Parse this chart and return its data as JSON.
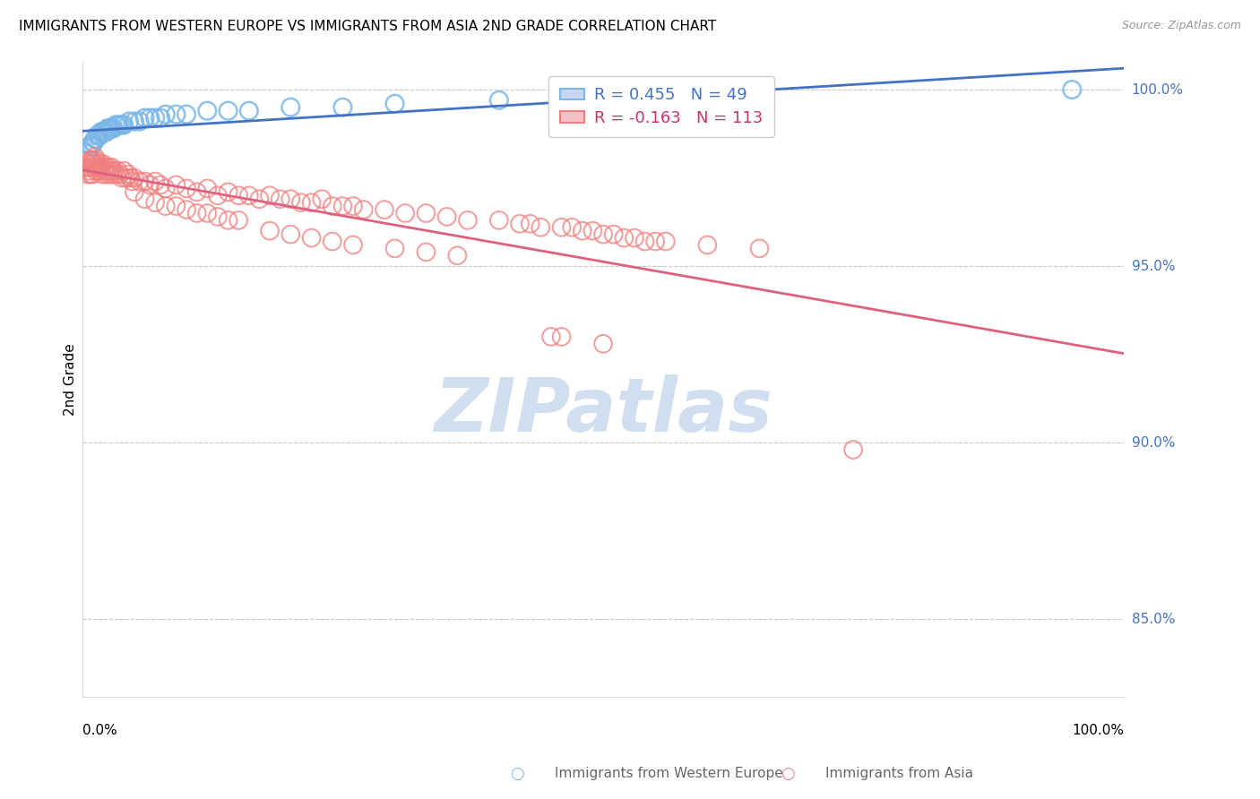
{
  "title": "IMMIGRANTS FROM WESTERN EUROPE VS IMMIGRANTS FROM ASIA 2ND GRADE CORRELATION CHART",
  "source": "Source: ZipAtlas.com",
  "ylabel": "2nd Grade",
  "blue_color": "#7BB8E8",
  "pink_color": "#F08080",
  "blue_line_color": "#4472C4",
  "pink_line_color": "#E06080",
  "watermark_color": "#D0DFF0",
  "legend_blue_r": "R = 0.455",
  "legend_blue_n": "N = 49",
  "legend_pink_r": "R = -0.163",
  "legend_pink_n": "N = 113",
  "xlim": [
    0.0,
    1.0
  ],
  "ylim": [
    0.828,
    1.008
  ],
  "ytick_values": [
    1.0,
    0.95,
    0.9,
    0.85
  ],
  "ytick_labels": [
    "100.0%",
    "95.0%",
    "90.0%",
    "85.0%"
  ],
  "blue_x": [
    0.003,
    0.005,
    0.007,
    0.009,
    0.01,
    0.011,
    0.012,
    0.013,
    0.014,
    0.015,
    0.016,
    0.017,
    0.018,
    0.019,
    0.02,
    0.021,
    0.022,
    0.023,
    0.024,
    0.025,
    0.026,
    0.027,
    0.028,
    0.03,
    0.032,
    0.034,
    0.036,
    0.038,
    0.04,
    0.045,
    0.05,
    0.055,
    0.06,
    0.065,
    0.07,
    0.075,
    0.08,
    0.09,
    0.1,
    0.12,
    0.14,
    0.16,
    0.2,
    0.25,
    0.3,
    0.4,
    0.5,
    0.6,
    0.95
  ],
  "blue_y": [
    0.98,
    0.982,
    0.984,
    0.984,
    0.985,
    0.985,
    0.986,
    0.986,
    0.987,
    0.987,
    0.987,
    0.987,
    0.988,
    0.988,
    0.988,
    0.988,
    0.988,
    0.988,
    0.989,
    0.989,
    0.989,
    0.989,
    0.989,
    0.989,
    0.99,
    0.99,
    0.99,
    0.99,
    0.99,
    0.991,
    0.991,
    0.991,
    0.992,
    0.992,
    0.992,
    0.992,
    0.993,
    0.993,
    0.993,
    0.994,
    0.994,
    0.994,
    0.995,
    0.995,
    0.996,
    0.997,
    0.997,
    0.998,
    1.0
  ],
  "pink_x": [
    0.003,
    0.004,
    0.005,
    0.005,
    0.006,
    0.007,
    0.008,
    0.008,
    0.009,
    0.01,
    0.01,
    0.011,
    0.012,
    0.012,
    0.013,
    0.013,
    0.014,
    0.015,
    0.016,
    0.017,
    0.018,
    0.019,
    0.02,
    0.021,
    0.022,
    0.023,
    0.024,
    0.025,
    0.026,
    0.027,
    0.028,
    0.029,
    0.03,
    0.032,
    0.034,
    0.036,
    0.038,
    0.04,
    0.042,
    0.044,
    0.046,
    0.048,
    0.05,
    0.055,
    0.06,
    0.065,
    0.07,
    0.075,
    0.08,
    0.09,
    0.1,
    0.11,
    0.12,
    0.13,
    0.14,
    0.15,
    0.16,
    0.17,
    0.18,
    0.19,
    0.2,
    0.21,
    0.22,
    0.23,
    0.24,
    0.25,
    0.26,
    0.27,
    0.29,
    0.31,
    0.33,
    0.35,
    0.37,
    0.4,
    0.42,
    0.43,
    0.44,
    0.46,
    0.47,
    0.48,
    0.49,
    0.5,
    0.51,
    0.52,
    0.53,
    0.54,
    0.55,
    0.56,
    0.6,
    0.65,
    0.05,
    0.06,
    0.07,
    0.08,
    0.09,
    0.1,
    0.11,
    0.12,
    0.13,
    0.14,
    0.15,
    0.18,
    0.2,
    0.22,
    0.24,
    0.26,
    0.3,
    0.33,
    0.36,
    0.74,
    0.45,
    0.46,
    0.5
  ],
  "pink_y": [
    0.978,
    0.978,
    0.976,
    0.979,
    0.978,
    0.977,
    0.976,
    0.98,
    0.978,
    0.976,
    0.98,
    0.979,
    0.978,
    0.981,
    0.977,
    0.98,
    0.979,
    0.978,
    0.977,
    0.979,
    0.978,
    0.976,
    0.979,
    0.977,
    0.978,
    0.976,
    0.977,
    0.978,
    0.976,
    0.977,
    0.978,
    0.976,
    0.977,
    0.976,
    0.977,
    0.976,
    0.975,
    0.977,
    0.975,
    0.976,
    0.975,
    0.974,
    0.975,
    0.974,
    0.974,
    0.973,
    0.974,
    0.973,
    0.972,
    0.973,
    0.972,
    0.971,
    0.972,
    0.97,
    0.971,
    0.97,
    0.97,
    0.969,
    0.97,
    0.969,
    0.969,
    0.968,
    0.968,
    0.969,
    0.967,
    0.967,
    0.967,
    0.966,
    0.966,
    0.965,
    0.965,
    0.964,
    0.963,
    0.963,
    0.962,
    0.962,
    0.961,
    0.961,
    0.961,
    0.96,
    0.96,
    0.959,
    0.959,
    0.958,
    0.958,
    0.957,
    0.957,
    0.957,
    0.956,
    0.955,
    0.971,
    0.969,
    0.968,
    0.967,
    0.967,
    0.966,
    0.965,
    0.965,
    0.964,
    0.963,
    0.963,
    0.96,
    0.959,
    0.958,
    0.957,
    0.956,
    0.955,
    0.954,
    0.953,
    0.898,
    0.93,
    0.93,
    0.928
  ]
}
